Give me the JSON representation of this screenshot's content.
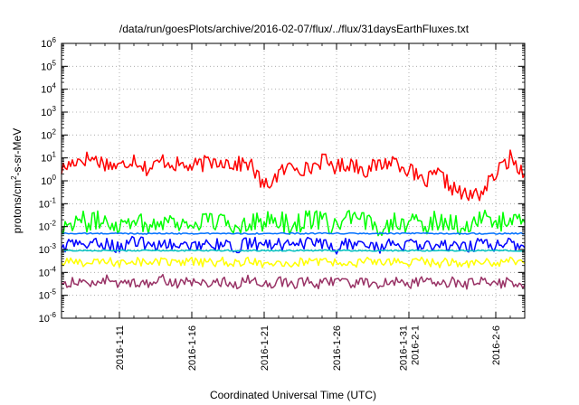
{
  "chart_data": {
    "type": "line",
    "title": "/data/run/goesPlots/archive/2016-02-07/flux/../flux/31daysEarthFluxes.txt",
    "xlabel": "Coordinated Universal Time (UTC)",
    "ylabel": "protons/cm²-s-sr-MeV",
    "yscale": "log",
    "ylim": [
      1e-06,
      1000000.0
    ],
    "xlim": [
      "2016-01-07",
      "2016-02-08"
    ],
    "grid": true,
    "legend": "none",
    "x_ticks": [
      {
        "date": "2016-01-11",
        "lines": [
          "2016-1-11"
        ]
      },
      {
        "date": "2016-01-16",
        "lines": [
          "2016-1-16"
        ]
      },
      {
        "date": "2016-01-21",
        "lines": [
          "2016-1-21"
        ]
      },
      {
        "date": "2016-01-26",
        "lines": [
          "2016-1-26"
        ]
      },
      {
        "date": "2016-01-31",
        "lines": [
          "2016-1-31",
          "2016-2-1"
        ]
      },
      {
        "date": "2016-02-06",
        "lines": [
          "2016-2-6"
        ]
      }
    ],
    "y_ticks": [
      {
        "value": 1e-06,
        "mantissa": "10",
        "exponent": "-6"
      },
      {
        "value": 1e-05,
        "mantissa": "10",
        "exponent": "-5"
      },
      {
        "value": 0.0001,
        "mantissa": "10",
        "exponent": "-4"
      },
      {
        "value": 0.001,
        "mantissa": "10",
        "exponent": "-3"
      },
      {
        "value": 0.01,
        "mantissa": "10",
        "exponent": "-2"
      },
      {
        "value": 0.1,
        "mantissa": "10",
        "exponent": "-1"
      },
      {
        "value": 1,
        "mantissa": "10",
        "exponent": "0"
      },
      {
        "value": 10,
        "mantissa": "10",
        "exponent": "1"
      },
      {
        "value": 100,
        "mantissa": "10",
        "exponent": "2"
      },
      {
        "value": 1000,
        "mantissa": "10",
        "exponent": "3"
      },
      {
        "value": 10000,
        "mantissa": "10",
        "exponent": "4"
      },
      {
        "value": 100000,
        "mantissa": "10",
        "exponent": "5"
      },
      {
        "value": 1000000,
        "mantissa": "10",
        "exponent": "6"
      }
    ],
    "x": [
      "2016-01-07",
      "2016-01-08",
      "2016-01-09",
      "2016-01-10",
      "2016-01-11",
      "2016-01-12",
      "2016-01-13",
      "2016-01-14",
      "2016-01-15",
      "2016-01-16",
      "2016-01-17",
      "2016-01-18",
      "2016-01-19",
      "2016-01-20",
      "2016-01-21",
      "2016-01-22",
      "2016-01-23",
      "2016-01-24",
      "2016-01-25",
      "2016-01-26",
      "2016-01-27",
      "2016-01-28",
      "2016-01-29",
      "2016-01-30",
      "2016-01-31",
      "2016-02-01",
      "2016-02-02",
      "2016-02-03",
      "2016-02-04",
      "2016-02-05",
      "2016-02-06",
      "2016-02-07",
      "2016-02-08"
    ],
    "series": [
      {
        "color": "#ff0000",
        "values": [
          3,
          8,
          10,
          6,
          4,
          10,
          3,
          8,
          5,
          4,
          6,
          8,
          5,
          6,
          0.5,
          2,
          5,
          3,
          8,
          4,
          6,
          3,
          5,
          8,
          3,
          0.8,
          2,
          0.5,
          0.2,
          0.3,
          2,
          10,
          2
        ]
      },
      {
        "color": "#00ff00",
        "values": [
          0.01,
          0.02,
          0.015,
          0.02,
          0.012,
          0.025,
          0.01,
          0.02,
          0.015,
          0.012,
          0.02,
          0.015,
          0.01,
          0.02,
          0.015,
          0.02,
          0.01,
          0.025,
          0.015,
          0.012,
          0.02,
          0.015,
          0.01,
          0.02,
          0.015,
          0.01,
          0.02,
          0.015,
          0.01,
          0.02,
          0.015,
          0.02,
          0.015
        ]
      },
      {
        "color": "#0070ff",
        "values": [
          0.005,
          0.005,
          0.005,
          0.005,
          0.005,
          0.005,
          0.005,
          0.005,
          0.005,
          0.005,
          0.005,
          0.005,
          0.005,
          0.005,
          0.005,
          0.005,
          0.005,
          0.005,
          0.005,
          0.005,
          0.005,
          0.005,
          0.005,
          0.005,
          0.005,
          0.005,
          0.005,
          0.005,
          0.005,
          0.005,
          0.005,
          0.005,
          0.005
        ]
      },
      {
        "color": "#0000ff",
        "values": [
          0.0012,
          0.002,
          0.0015,
          0.002,
          0.0012,
          0.0025,
          0.0015,
          0.002,
          0.0012,
          0.0015,
          0.002,
          0.0015,
          0.0012,
          0.002,
          0.0015,
          0.002,
          0.0012,
          0.002,
          0.0015,
          0.0012,
          0.002,
          0.0015,
          0.0012,
          0.002,
          0.0015,
          0.0012,
          0.002,
          0.0015,
          0.0012,
          0.002,
          0.0015,
          0.002,
          0.0012
        ]
      },
      {
        "color": "#00c0c0",
        "values": [
          0.0009,
          0.0009,
          0.0009,
          0.0009,
          0.0009,
          0.0009,
          0.0009,
          0.0009,
          0.0009,
          0.0009,
          0.0009,
          0.0009,
          0.0009,
          0.0009,
          0.0009,
          0.0009,
          0.0009,
          0.0009,
          0.0009,
          0.0009,
          0.0009,
          0.0009,
          0.0009,
          0.0009,
          0.0009,
          0.0009,
          0.0009,
          0.0009,
          0.0009,
          0.0009,
          0.0009,
          0.0009,
          0.0009
        ]
      },
      {
        "color": "#ffff00",
        "values": [
          0.00025,
          0.0003,
          0.00025,
          0.0003,
          0.00025,
          0.00035,
          0.00025,
          0.0003,
          0.00025,
          0.0003,
          0.00025,
          0.0003,
          0.00025,
          0.0003,
          0.00025,
          0.0003,
          0.00025,
          0.0003,
          0.00025,
          0.0003,
          0.00025,
          0.0003,
          0.00025,
          0.0003,
          0.00025,
          0.0003,
          0.00025,
          0.0003,
          0.00025,
          0.0003,
          0.00025,
          0.0003,
          0.00025
        ]
      },
      {
        "color": "#993366",
        "values": [
          3e-05,
          4e-05,
          3e-05,
          5e-05,
          3e-05,
          4e-05,
          3e-05,
          5e-05,
          3e-05,
          4e-05,
          3e-05,
          4e-05,
          3e-05,
          5e-05,
          3e-05,
          4e-05,
          3e-05,
          4e-05,
          3e-05,
          5e-05,
          3e-05,
          4e-05,
          3e-05,
          4e-05,
          3e-05,
          5e-05,
          3e-05,
          4e-05,
          3e-05,
          4e-05,
          3e-05,
          4e-05,
          3e-05
        ]
      }
    ]
  }
}
